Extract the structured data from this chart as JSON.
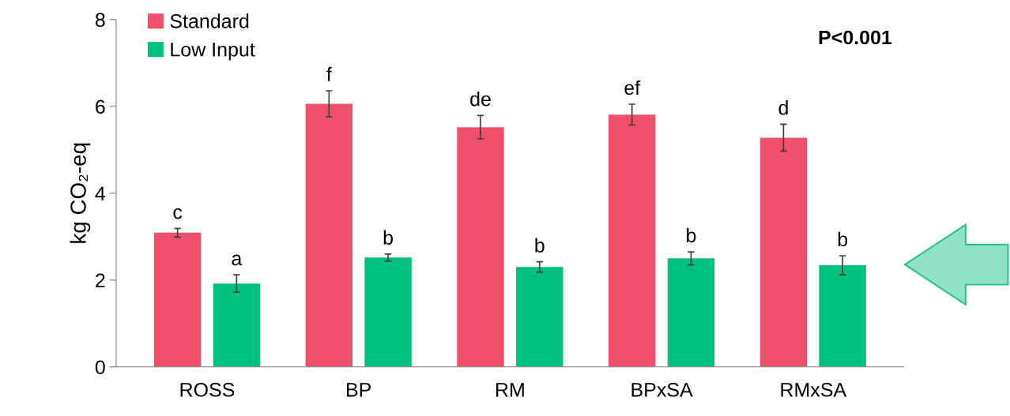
{
  "chart_data": {
    "type": "bar",
    "ylabel": "kg CO₂-eq",
    "categories": [
      "ROSS",
      "BP",
      "RM",
      "BPxSA",
      "RMxSA"
    ],
    "series": [
      {
        "name": "Standard",
        "color": "#f0506a",
        "values": [
          3.09,
          6.06,
          5.52,
          5.81,
          5.28
        ],
        "errors": [
          0.1,
          0.3,
          0.27,
          0.24,
          0.31
        ]
      },
      {
        "name": "Low Input",
        "color": "#00c07f",
        "values": [
          1.92,
          2.52,
          2.3,
          2.5,
          2.34
        ],
        "errors": [
          0.2,
          0.08,
          0.12,
          0.15,
          0.22
        ]
      }
    ],
    "ylim": [
      0,
      8
    ],
    "yticks": [
      0,
      2,
      4,
      6,
      8
    ],
    "grid": false,
    "legend": "top left",
    "annotations": [
      "c",
      "a",
      "f",
      "b",
      "de",
      "b",
      "ef",
      "b",
      "d",
      "b",
      "P<0.001"
    ]
  }
}
